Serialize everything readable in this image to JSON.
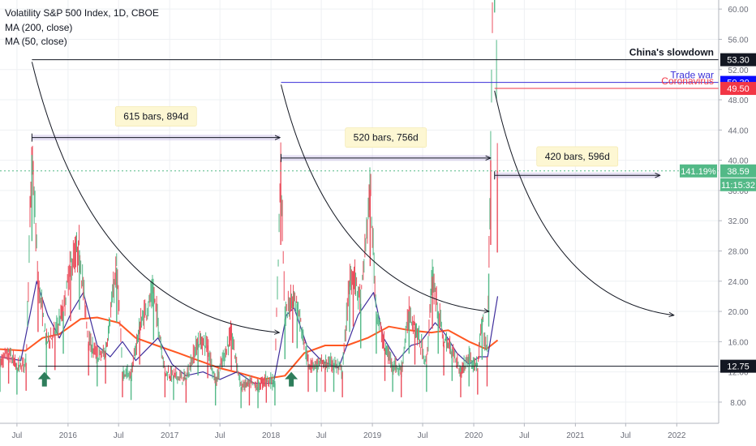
{
  "header": {
    "title": "Volatility S&P 500 Index, 1D, CBOE",
    "ma200": "MA (200, close)",
    "ma50": "MA (50, close)"
  },
  "colors": {
    "up": "#53b987",
    "down": "#eb4d5c",
    "ma200": "#ff5722",
    "ma50": "#3f2e9c",
    "trendline": "#131722",
    "trade_war": "#3a2ed8",
    "coronavirus": "#f23645",
    "range_box": "#b6a8e0",
    "grid": "#eef0f3"
  },
  "chart_data": {
    "type": "candlestick",
    "title": "Volatility S&P 500 Index, 1D, CBOE",
    "x_tick_labels": [
      "Jul",
      "2016",
      "Jul",
      "2017",
      "Jul",
      "2018",
      "Jul",
      "2019",
      "Jul",
      "2020",
      "Jul",
      "2021",
      "Jul",
      "2022"
    ],
    "x_tick_dates": [
      "2015-07-01",
      "2016-01-01",
      "2016-07-01",
      "2017-01-01",
      "2017-07-01",
      "2018-01-01",
      "2018-07-01",
      "2019-01-01",
      "2019-07-01",
      "2020-01-01",
      "2020-07-01",
      "2021-01-01",
      "2021-07-01",
      "2022-01-01"
    ],
    "y_tick_labels": [
      "8.00",
      "12.00",
      "16.00",
      "20.00",
      "24.00",
      "28.00",
      "32.00",
      "36.00",
      "40.00",
      "44.00",
      "48.00",
      "52.00",
      "56.00",
      "60.00"
    ],
    "ylim": [
      5.2,
      61.2
    ],
    "xlim": [
      "2015-05-01",
      "2022-06-01"
    ],
    "price_series": {
      "dates": [
        "2015-05-01",
        "2015-06-01",
        "2015-07-01",
        "2015-08-03",
        "2015-08-24",
        "2015-09-15",
        "2015-10-15",
        "2015-11-15",
        "2015-12-15",
        "2016-01-10",
        "2016-02-11",
        "2016-03-15",
        "2016-04-15",
        "2016-05-15",
        "2016-06-24",
        "2016-07-15",
        "2016-08-15",
        "2016-09-15",
        "2016-11-04",
        "2016-12-15",
        "2017-01-15",
        "2017-03-01",
        "2017-04-13",
        "2017-05-18",
        "2017-06-15",
        "2017-08-11",
        "2017-09-15",
        "2017-10-15",
        "2017-11-15",
        "2017-12-15",
        "2018-01-15",
        "2018-02-05",
        "2018-02-20",
        "2018-03-20",
        "2018-04-05",
        "2018-05-15",
        "2018-06-15",
        "2018-07-15",
        "2018-08-15",
        "2018-09-15",
        "2018-10-11",
        "2018-10-24",
        "2018-11-20",
        "2018-12-24",
        "2019-01-15",
        "2019-02-15",
        "2019-03-15",
        "2019-04-15",
        "2019-05-13",
        "2019-06-03",
        "2019-07-15",
        "2019-08-05",
        "2019-08-26",
        "2019-09-15",
        "2019-10-15",
        "2019-11-15",
        "2019-12-15",
        "2020-01-15",
        "2020-01-31",
        "2020-02-18",
        "2020-02-24",
        "2020-03-02",
        "2020-03-16",
        "2020-03-26"
      ],
      "values": [
        13.0,
        14.5,
        12.5,
        13.2,
        40.7,
        24.0,
        16.0,
        17.0,
        20.0,
        26.0,
        28.1,
        16.0,
        14.0,
        14.5,
        25.8,
        12.0,
        11.5,
        18.0,
        22.5,
        12.0,
        11.5,
        11.0,
        16.0,
        15.5,
        10.5,
        17.0,
        10.0,
        10.5,
        10.0,
        11.0,
        10.5,
        40.0,
        19.0,
        22.0,
        21.0,
        13.0,
        13.0,
        13.0,
        13.0,
        12.0,
        24.0,
        25.0,
        21.0,
        36.1,
        20.0,
        15.0,
        13.0,
        12.0,
        20.0,
        18.0,
        13.0,
        24.6,
        20.0,
        16.0,
        15.0,
        12.0,
        14.0,
        12.5,
        18.9,
        14.0,
        25.0,
        40.0,
        82.7,
        38.6
      ]
    },
    "series": [
      {
        "name": "MA (200, close)",
        "dates": [
          "2015-05-01",
          "2015-08-01",
          "2015-10-01",
          "2015-12-01",
          "2016-02-15",
          "2016-04-15",
          "2016-07-01",
          "2016-09-01",
          "2016-11-15",
          "2017-02-01",
          "2017-04-15",
          "2017-07-01",
          "2017-09-15",
          "2017-12-01",
          "2018-02-20",
          "2018-05-01",
          "2018-07-15",
          "2018-10-01",
          "2018-12-15",
          "2019-03-01",
          "2019-05-15",
          "2019-08-01",
          "2019-10-01",
          "2019-12-15",
          "2020-02-15",
          "2020-03-27"
        ],
        "values": [
          15.0,
          14.8,
          16.5,
          17.0,
          19.0,
          19.2,
          18.5,
          16.5,
          15.5,
          14.5,
          13.5,
          12.5,
          11.8,
          11.0,
          11.5,
          14.5,
          15.5,
          15.5,
          16.5,
          18.0,
          17.5,
          17.2,
          17.5,
          16.0,
          15.0,
          16.2
        ]
      },
      {
        "name": "MA (50, close)",
        "dates": [
          "2015-05-01",
          "2015-07-15",
          "2015-09-10",
          "2015-10-20",
          "2015-12-01",
          "2016-01-15",
          "2016-02-25",
          "2016-04-15",
          "2016-06-01",
          "2016-07-15",
          "2016-09-01",
          "2016-11-20",
          "2017-01-10",
          "2017-03-01",
          "2017-05-01",
          "2017-07-01",
          "2017-09-01",
          "2017-11-01",
          "2018-01-10",
          "2018-02-25",
          "2018-03-25",
          "2018-05-10",
          "2018-07-01",
          "2018-09-01",
          "2018-11-10",
          "2019-01-05",
          "2019-02-10",
          "2019-04-01",
          "2019-05-20",
          "2019-06-20",
          "2019-08-15",
          "2019-09-20",
          "2019-11-01",
          "2019-12-15",
          "2020-01-20",
          "2020-02-20",
          "2020-03-27"
        ],
        "values": [
          14.0,
          13.5,
          24.0,
          19.5,
          16.5,
          20.0,
          22.5,
          15.5,
          14.0,
          16.0,
          13.5,
          16.5,
          13.0,
          11.5,
          12.0,
          11.0,
          12.0,
          10.5,
          10.5,
          19.5,
          20.5,
          15.5,
          13.5,
          12.5,
          19.5,
          22.5,
          16.5,
          13.5,
          15.5,
          15.8,
          18.5,
          17.0,
          14.5,
          13.0,
          14.0,
          14.0,
          22.0
        ]
      }
    ],
    "annotations": {
      "levels": [
        {
          "label": "China's slowdown",
          "value": 53.3,
          "value_label": "53.30",
          "from": "2015-08-24"
        },
        {
          "label": "Trade war",
          "value": 50.3,
          "value_label": "50.30",
          "from": "2018-02-06"
        },
        {
          "label": "Coronavirus",
          "value": 49.5,
          "value_label": "49.50",
          "from": "2020-03-16"
        },
        {
          "label": "",
          "value": 12.75,
          "value_label": "12.75",
          "from": "2015-09-15"
        }
      ],
      "ranges": [
        {
          "label": "615 bars, 894d",
          "from": "2015-08-24",
          "to": "2018-02-02",
          "value": 43.0,
          "label_value": 45.8
        },
        {
          "label": "520 bars, 756d",
          "from": "2018-02-06",
          "to": "2020-03-02",
          "value": 40.3,
          "label_value": 43.0
        },
        {
          "label": "420 bars, 596d",
          "from": "2020-03-16",
          "to": "2021-11-02",
          "value": 38.0,
          "label_value": 40.5
        }
      ],
      "decay_curves": [
        {
          "from": "2015-08-24",
          "from_value": 53.0,
          "to": "2018-01-31",
          "to_value": 17.2
        },
        {
          "from": "2018-02-06",
          "from_value": 50.0,
          "to": "2020-02-25",
          "to_value": 20.0
        },
        {
          "from": "2020-03-16",
          "from_value": 49.2,
          "to": "2021-12-22",
          "to_value": 19.5
        }
      ],
      "arrows_up": [
        "2015-10-08",
        "2018-03-15"
      ],
      "current": {
        "value": 38.59,
        "value_label": "38.59",
        "percent_label": "141.19%",
        "countdown_label": "11:15:32"
      }
    },
    "grid": true
  }
}
